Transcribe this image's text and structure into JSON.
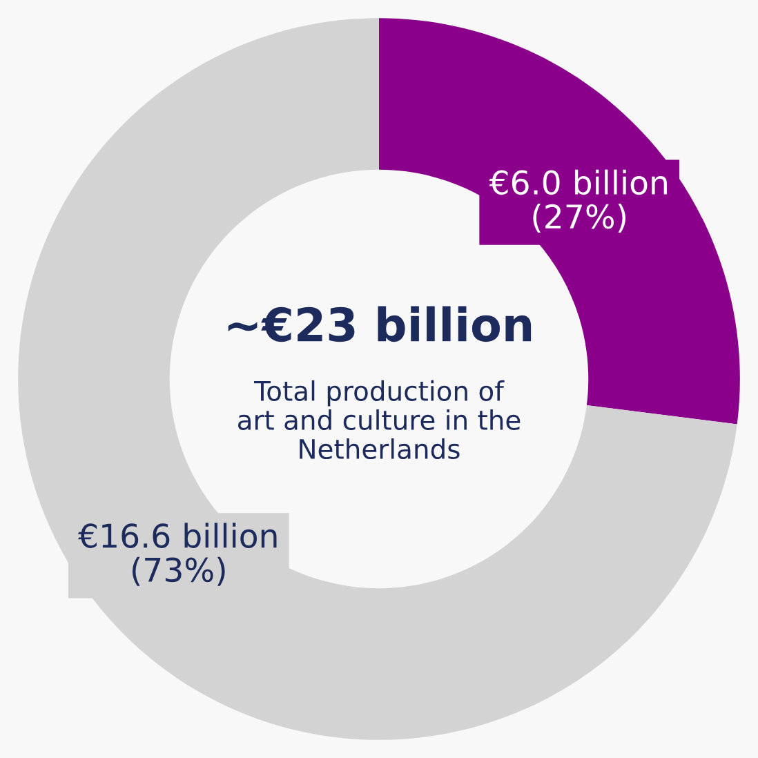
{
  "chart_data": {
    "type": "donut",
    "categories": [
      null,
      null
    ],
    "values": [
      27,
      73
    ],
    "colors": [
      "#8b008b",
      "#d3d3d3"
    ],
    "value_labels": [
      "€6.0 billion\n(27%)",
      "€16.6 billion\n(73%)"
    ],
    "annotations": [
      "~€23 billion",
      "Total production of\nart and culture in the\nNetherlands"
    ]
  }
}
